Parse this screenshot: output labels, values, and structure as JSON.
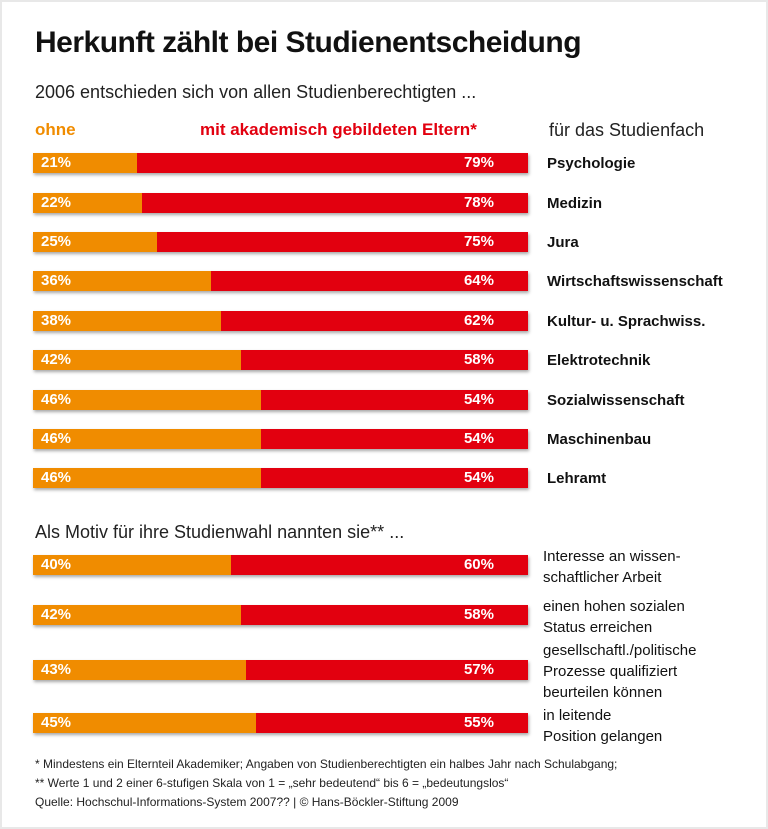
{
  "chart_data": [
    {
      "type": "bar",
      "orientation": "horizontal",
      "stacked": true,
      "title": "Herkunft zählt bei Studienentscheidung",
      "subtitle": "2006 entschieden sich von allen Studienberechtigten ...",
      "legend": [
        "ohne",
        "mit akademisch gebildeten Eltern*"
      ],
      "category_header": "für das Studienfach",
      "colors": [
        "#f08c00",
        "#e2000f"
      ],
      "categories": [
        "Psychologie",
        "Medizin",
        "Jura",
        "Wirtschaftswissenschaft",
        "Kultur- u. Sprachwiss.",
        "Elektrotechnik",
        "Sozialwissenschaft",
        "Maschinenbau",
        "Lehramt"
      ],
      "series": [
        {
          "name": "ohne",
          "values": [
            21,
            22,
            25,
            36,
            38,
            42,
            46,
            46,
            46
          ]
        },
        {
          "name": "mit akademisch gebildeten Eltern*",
          "values": [
            79,
            78,
            75,
            64,
            62,
            58,
            54,
            54,
            54
          ]
        }
      ],
      "xlim": [
        0,
        100
      ]
    },
    {
      "type": "bar",
      "orientation": "horizontal",
      "stacked": true,
      "subtitle": "Als Motiv für ihre Studienwahl nannten sie** ...",
      "colors": [
        "#f08c00",
        "#e2000f"
      ],
      "categories": [
        "Interesse an wissen-\nschaftlicher Arbeit",
        "einen hohen sozialen\nStatus erreichen",
        "gesellschaftl./politische\nProzesse qualifiziert\nbeurteilen können",
        "in leitende\nPosition gelangen"
      ],
      "series": [
        {
          "name": "ohne",
          "values": [
            40,
            42,
            43,
            45
          ]
        },
        {
          "name": "mit akademisch gebildeten Eltern*",
          "values": [
            60,
            58,
            57,
            55
          ]
        }
      ],
      "xlim": [
        0,
        100
      ]
    }
  ],
  "footnotes": [
    "* Mindestens ein Elternteil Akademiker; Angaben von Studienberechtigten ein halbes Jahr nach Schulabgang;",
    "** Werte 1 und 2 einer 6-stufigen Skala von 1 = „sehr bedeutend“ bis 6 = „bedeutungslos“",
    "Quelle: Hochschul-Informations-System 2007?? | © Hans-Böckler-Stiftung 2009"
  ]
}
